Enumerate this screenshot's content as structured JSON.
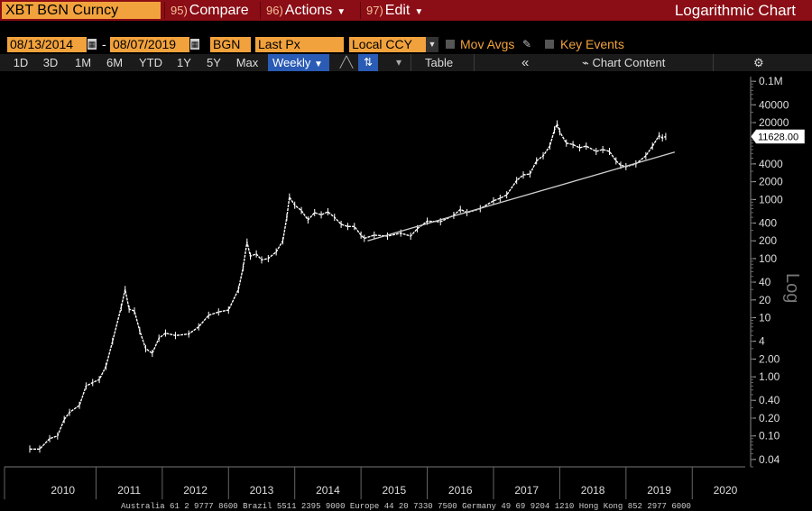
{
  "header": {
    "ticker": "XBT BGN Curncy",
    "compare": {
      "num": "95)",
      "label": "Compare"
    },
    "actions": {
      "num": "96)",
      "label": "Actions"
    },
    "edit": {
      "num": "97)",
      "label": "Edit"
    },
    "chart_title": "Logarithmic Chart"
  },
  "controls": {
    "start_date": "08/13/2014",
    "end_date": "08/07/2019",
    "source": "BGN",
    "field": "Last Px",
    "currency": "Local CCY",
    "mov_avgs": "Mov Avgs",
    "key_events": "Key Events"
  },
  "toolbar": {
    "periods": [
      "1D",
      "3D",
      "1M",
      "6M",
      "YTD",
      "1Y",
      "5Y",
      "Max"
    ],
    "frequency": "Weekly",
    "table_label": "Table",
    "collapse": "«",
    "chart_content": "Chart Content",
    "settings": "⚙"
  },
  "footer": "Australia 61 2 9777 8600 Brazil 5511 2395 9000 Europe 44 20 7330 7500 Germany 49 69 9204 1210 Hong Kong 852 2977 6000",
  "colors": {
    "accent": "#f2a23c",
    "menubar": "#8b0d15",
    "selected": "#2a5bb5",
    "line": "#ffffff"
  },
  "chart_data": {
    "type": "line",
    "scale": "log",
    "title": "Logarithmic Chart",
    "ylabel": "Log",
    "ylim": [
      0.03,
      120000
    ],
    "xlim": [
      2010.0,
      2020.8
    ],
    "x_ticks": [
      "2010",
      "2011",
      "2012",
      "2013",
      "2014",
      "2015",
      "2016",
      "2017",
      "2018",
      "2019",
      "2020"
    ],
    "y_ticks": [
      {
        "v": 100000,
        "t": "0.1M"
      },
      {
        "v": 40000,
        "t": "40000"
      },
      {
        "v": 20000,
        "t": "20000"
      },
      {
        "v": 4000,
        "t": "4000"
      },
      {
        "v": 2000,
        "t": "2000"
      },
      {
        "v": 1000,
        "t": "1000"
      },
      {
        "v": 400,
        "t": "400"
      },
      {
        "v": 200,
        "t": "200"
      },
      {
        "v": 100,
        "t": "100"
      },
      {
        "v": 40,
        "t": "40"
      },
      {
        "v": 20,
        "t": "20"
      },
      {
        "v": 10,
        "t": "10"
      },
      {
        "v": 4,
        "t": "4"
      },
      {
        "v": 2,
        "t": "2.00"
      },
      {
        "v": 1,
        "t": "1.00"
      },
      {
        "v": 0.4,
        "t": "0.40"
      },
      {
        "v": 0.2,
        "t": "0.20"
      },
      {
        "v": 0.1,
        "t": "0.10"
      },
      {
        "v": 0.04,
        "t": "0.04"
      }
    ],
    "last_value": 11628.0,
    "last_value_label": "11628.00",
    "series": [
      {
        "values": [
          [
            2010.0,
            0.06
          ],
          [
            2010.15,
            0.06
          ],
          [
            2010.3,
            0.09
          ],
          [
            2010.42,
            0.1
          ],
          [
            2010.52,
            0.19
          ],
          [
            2010.6,
            0.25
          ],
          [
            2010.75,
            0.33
          ],
          [
            2010.85,
            0.7
          ],
          [
            2010.95,
            0.8
          ],
          [
            2011.05,
            0.9
          ],
          [
            2011.15,
            1.5
          ],
          [
            2011.25,
            4.0
          ],
          [
            2011.38,
            15.0
          ],
          [
            2011.44,
            30.0
          ],
          [
            2011.5,
            14.0
          ],
          [
            2011.58,
            13.0
          ],
          [
            2011.66,
            6.0
          ],
          [
            2011.75,
            3.0
          ],
          [
            2011.85,
            2.5
          ],
          [
            2011.95,
            4.5
          ],
          [
            2012.05,
            5.5
          ],
          [
            2012.2,
            5.0
          ],
          [
            2012.4,
            5.3
          ],
          [
            2012.55,
            7.0
          ],
          [
            2012.7,
            11.0
          ],
          [
            2012.85,
            12.5
          ],
          [
            2013.0,
            13.5
          ],
          [
            2013.15,
            30.0
          ],
          [
            2013.22,
            70.0
          ],
          [
            2013.28,
            190.0
          ],
          [
            2013.33,
            110.0
          ],
          [
            2013.42,
            120.0
          ],
          [
            2013.5,
            95.0
          ],
          [
            2013.6,
            100.0
          ],
          [
            2013.72,
            130.0
          ],
          [
            2013.82,
            200.0
          ],
          [
            2013.88,
            500.0
          ],
          [
            2013.92,
            1100.0
          ],
          [
            2014.0,
            800.0
          ],
          [
            2014.1,
            650.0
          ],
          [
            2014.2,
            450.0
          ],
          [
            2014.3,
            600.0
          ],
          [
            2014.4,
            550.0
          ],
          [
            2014.5,
            620.0
          ],
          [
            2014.6,
            500.0
          ],
          [
            2014.7,
            380.0
          ],
          [
            2014.8,
            350.0
          ],
          [
            2014.9,
            350.0
          ],
          [
            2015.0,
            250.0
          ],
          [
            2015.05,
            220.0
          ],
          [
            2015.2,
            250.0
          ],
          [
            2015.4,
            240.0
          ],
          [
            2015.6,
            270.0
          ],
          [
            2015.75,
            240.0
          ],
          [
            2015.85,
            320.0
          ],
          [
            2016.0,
            430.0
          ],
          [
            2016.2,
            420.0
          ],
          [
            2016.4,
            540.0
          ],
          [
            2016.5,
            680.0
          ],
          [
            2016.6,
            600.0
          ],
          [
            2016.8,
            700.0
          ],
          [
            2017.0,
            950.0
          ],
          [
            2017.1,
            1050.0
          ],
          [
            2017.2,
            1200.0
          ],
          [
            2017.35,
            2100.0
          ],
          [
            2017.45,
            2600.0
          ],
          [
            2017.55,
            2700.0
          ],
          [
            2017.65,
            4500.0
          ],
          [
            2017.75,
            5500.0
          ],
          [
            2017.85,
            8000.0
          ],
          [
            2017.92,
            15000.0
          ],
          [
            2017.96,
            19000.0
          ],
          [
            2018.0,
            14000.0
          ],
          [
            2018.1,
            9000.0
          ],
          [
            2018.2,
            8500.0
          ],
          [
            2018.3,
            7500.0
          ],
          [
            2018.4,
            8000.0
          ],
          [
            2018.55,
            6500.0
          ],
          [
            2018.65,
            7000.0
          ],
          [
            2018.75,
            6500.0
          ],
          [
            2018.85,
            4500.0
          ],
          [
            2018.92,
            3800.0
          ],
          [
            2019.0,
            3600.0
          ],
          [
            2019.15,
            4000.0
          ],
          [
            2019.3,
            5500.0
          ],
          [
            2019.4,
            8000.0
          ],
          [
            2019.5,
            12000.0
          ],
          [
            2019.55,
            11000.0
          ],
          [
            2019.6,
            11628.0
          ]
        ]
      }
    ],
    "trendline": {
      "from": [
        2015.1,
        200.0
      ],
      "to": [
        2019.6,
        5500.0
      ]
    }
  }
}
